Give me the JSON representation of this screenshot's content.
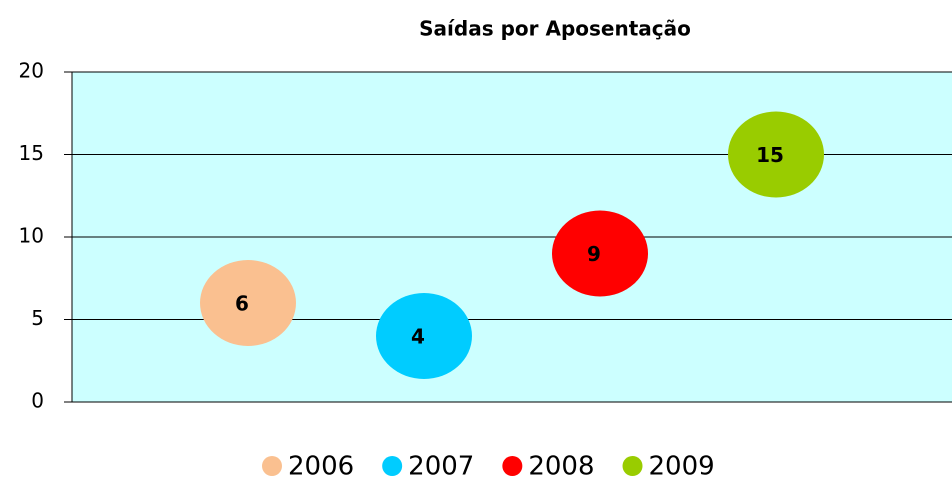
{
  "chart_data": {
    "type": "bubble",
    "title": "Saídas por Aposentação",
    "series": [
      {
        "name": "2006",
        "color": "#fac090",
        "x": [
          1
        ],
        "values": [
          6
        ]
      },
      {
        "name": "2007",
        "color": "#00ccff",
        "x": [
          2
        ],
        "values": [
          4
        ]
      },
      {
        "name": "2008",
        "color": "#ff0000",
        "x": [
          3
        ],
        "values": [
          9
        ]
      },
      {
        "name": "2009",
        "color": "#99cc00",
        "x": [
          4
        ],
        "values": [
          15
        ]
      }
    ],
    "xlim": [
      0,
      5
    ],
    "ylim": [
      0,
      20
    ],
    "yticks": [
      0,
      5,
      10,
      15,
      20
    ],
    "grid": true,
    "legend": "bottom"
  }
}
